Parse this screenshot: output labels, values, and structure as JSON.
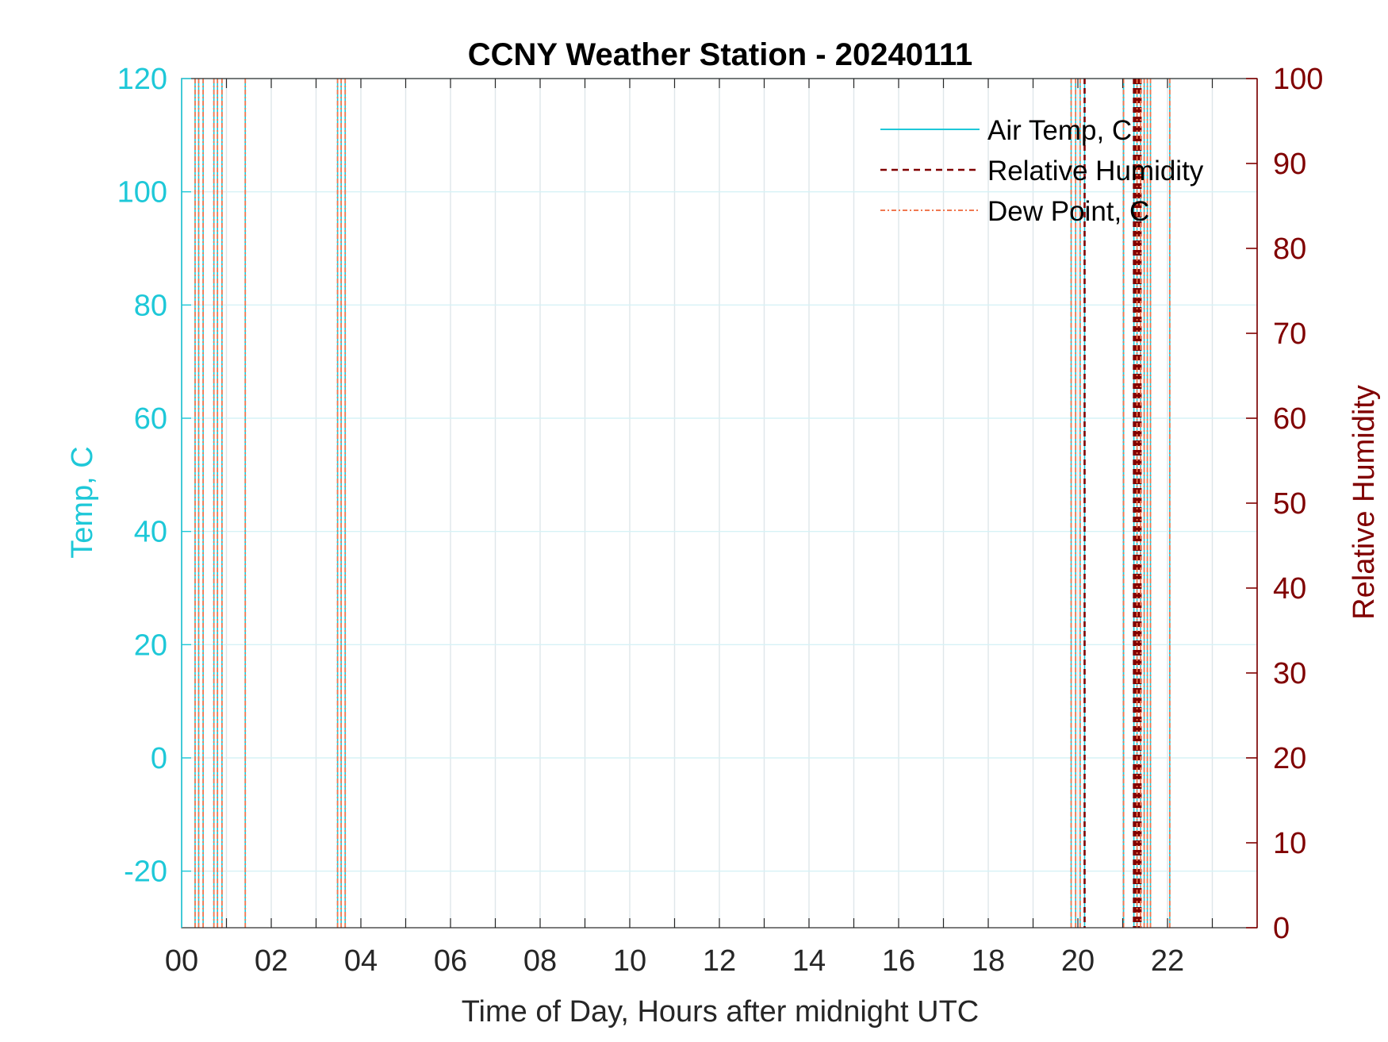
{
  "colors": {
    "temp_axis": "#1ec8d8",
    "rh_axis": "#800000",
    "dew": "#f07850",
    "grid": "#dfe6ea",
    "grid_temp": "#d6f2f6",
    "text": "#262626"
  },
  "chart_data": {
    "type": "line",
    "title": "CCNY Weather Station - 20240111",
    "xlabel": "Time of Day, Hours after midnight UTC",
    "ylabel_left": "Temp, C",
    "ylabel_right": "Relative Humidity",
    "xlim": [
      0,
      24
    ],
    "ylim_left": [
      -30,
      120
    ],
    "ylim_right": [
      0,
      100
    ],
    "x_ticks": [
      0,
      2,
      4,
      6,
      8,
      10,
      12,
      14,
      16,
      18,
      20,
      22
    ],
    "x_tick_labels": [
      "00",
      "02",
      "04",
      "06",
      "08",
      "10",
      "12",
      "14",
      "16",
      "18",
      "20",
      "22"
    ],
    "y_left_ticks": [
      -20,
      0,
      20,
      40,
      60,
      80,
      100,
      120
    ],
    "y_left_tick_labels": [
      "-20",
      "0",
      "20",
      "40",
      "60",
      "80",
      "100",
      "120"
    ],
    "y_right_ticks": [
      0,
      10,
      20,
      30,
      40,
      50,
      60,
      70,
      80,
      90,
      100
    ],
    "y_right_tick_labels": [
      "0",
      "10",
      "20",
      "30",
      "40",
      "50",
      "60",
      "70",
      "80",
      "90",
      "100"
    ],
    "grid": true,
    "legend_position": "top-right",
    "series": [
      {
        "name": "Air Temp, C",
        "style": "solid",
        "color": "#1ec8d8",
        "spike_times": [
          0.3,
          0.38,
          0.48,
          0.72,
          0.8,
          0.9,
          1.42,
          3.48,
          3.56,
          3.65,
          19.85,
          19.95,
          20.05,
          20.15,
          21.02,
          21.25,
          21.32,
          21.4,
          21.48,
          21.55,
          21.62,
          22.05
        ]
      },
      {
        "name": "Relative Humidity",
        "style": "dashed",
        "color": "#800000",
        "spike_times": [
          20.15,
          21.25,
          21.28,
          21.32,
          21.36,
          21.4
        ]
      },
      {
        "name": "Dew Point, C",
        "style": "dashdot",
        "color": "#f07850",
        "spike_times": [
          0.3,
          0.38,
          0.48,
          0.72,
          0.8,
          0.9,
          1.42,
          3.48,
          3.56,
          3.65,
          19.85,
          19.95,
          20.05,
          21.02,
          21.32,
          21.4,
          21.48,
          21.55,
          21.62,
          22.05
        ]
      }
    ]
  }
}
